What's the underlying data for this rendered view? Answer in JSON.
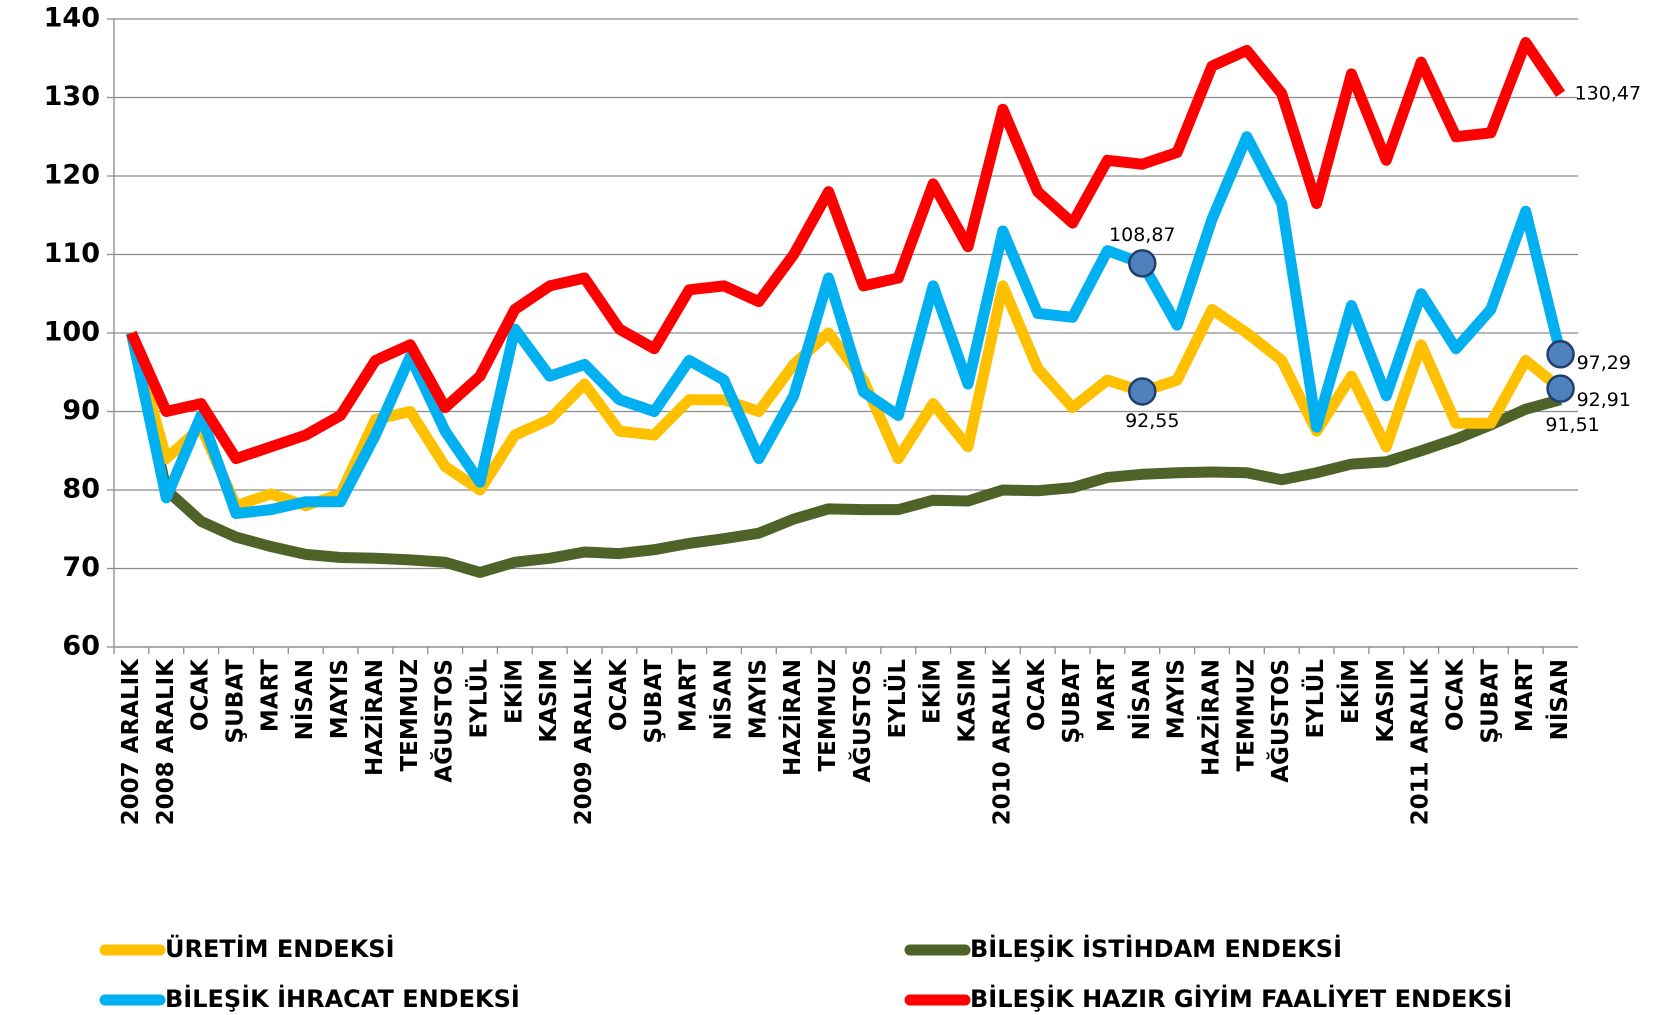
{
  "chart_data": {
    "type": "line",
    "categories": [
      "2007 ARALIK",
      "2008 ARALIK",
      "OCAK",
      "ŞUBAT",
      "MART",
      "NİSAN",
      "MAYIS",
      "HAZİRAN",
      "TEMMUZ",
      "AĞUSTOS",
      "EYLÜL",
      "EKİM",
      "KASIM",
      "2009 ARALIK",
      "OCAK",
      "ŞUBAT",
      "MART",
      "NİSAN",
      "MAYIS",
      "HAZİRAN",
      "TEMMUZ",
      "AĞUSTOS",
      "EYLÜL",
      "EKİM",
      "KASIM",
      "2010 ARALIK",
      "OCAK",
      "ŞUBAT",
      "MART",
      "NİSAN",
      "MAYIS",
      "HAZİRAN",
      "TEMMUZ",
      "AĞUSTOS",
      "EYLÜL",
      "EKİM",
      "KASIM",
      "2011 ARALIK",
      "OCAK",
      "ŞUBAT",
      "MART",
      "NİSAN"
    ],
    "ylim": [
      60,
      140
    ],
    "yticks": [
      60,
      70,
      80,
      90,
      100,
      110,
      120,
      130,
      140
    ],
    "grid": true,
    "series": [
      {
        "name": "ÜRETİM ENDEKSİ",
        "color": "#ffc000",
        "marker_color": "#4f81bd",
        "values": [
          100,
          84,
          88,
          78,
          79.5,
          78,
          79.5,
          89,
          90,
          83,
          80,
          87,
          89,
          93.5,
          87.5,
          87,
          91.5,
          91.5,
          90,
          96,
          100,
          94,
          84,
          91,
          85.5,
          106,
          95.5,
          90.5,
          94,
          92.55,
          94,
          103,
          100,
          96.5,
          87.5,
          94.5,
          85.5,
          98.5,
          88.5,
          88.5,
          96.5,
          92.91
        ],
        "value_labels": [
          null,
          null,
          null,
          null,
          null,
          null,
          null,
          null,
          null,
          null,
          null,
          null,
          null,
          null,
          null,
          null,
          null,
          null,
          null,
          null,
          null,
          null,
          null,
          null,
          null,
          null,
          null,
          null,
          null,
          "92,55",
          null,
          null,
          null,
          null,
          null,
          null,
          null,
          null,
          null,
          null,
          null,
          "92,91"
        ]
      },
      {
        "name": "BİLEŞİK İHRACAT ENDEKSİ",
        "color": "#00b0f0",
        "marker_color": "#4f81bd",
        "values": [
          100,
          79,
          89.5,
          77,
          77.5,
          78.5,
          78.5,
          87,
          97,
          87.5,
          81,
          100.5,
          94.5,
          96,
          91.5,
          90,
          96.5,
          94,
          84,
          92,
          107,
          92.5,
          89.5,
          106,
          93.5,
          113,
          102.5,
          102,
          110.5,
          108.87,
          101,
          114.5,
          125,
          116.5,
          88,
          103.5,
          92,
          105,
          98,
          103,
          115.5,
          97.29
        ],
        "value_labels": [
          null,
          null,
          null,
          null,
          null,
          null,
          null,
          null,
          null,
          null,
          null,
          null,
          null,
          null,
          null,
          null,
          null,
          null,
          null,
          null,
          null,
          null,
          null,
          null,
          null,
          null,
          null,
          null,
          null,
          "108,87",
          null,
          null,
          null,
          null,
          null,
          null,
          null,
          null,
          null,
          null,
          null,
          "97,29"
        ]
      },
      {
        "name": "BİLEŞİK İSTİHDAM ENDEKSİ",
        "color": "#4f6228",
        "values": [
          100,
          80,
          76,
          74,
          72.8,
          71.8,
          71.4,
          71.3,
          71.1,
          70.8,
          69.5,
          70.8,
          71.3,
          72.1,
          71.9,
          72.4,
          73.2,
          73.8,
          74.5,
          76.3,
          77.6,
          77.5,
          77.5,
          78.7,
          78.6,
          80,
          79.9,
          80.3,
          81.6,
          82,
          82.2,
          82.3,
          82.2,
          81.3,
          82.2,
          83.3,
          83.6,
          85,
          86.5,
          88.3,
          90.3,
          91.51
        ],
        "value_labels": [
          null,
          null,
          null,
          null,
          null,
          null,
          null,
          null,
          null,
          null,
          null,
          null,
          null,
          null,
          null,
          null,
          null,
          null,
          null,
          null,
          null,
          null,
          null,
          null,
          null,
          null,
          null,
          null,
          null,
          null,
          null,
          null,
          null,
          null,
          null,
          null,
          null,
          null,
          null,
          null,
          null,
          "91,51"
        ]
      },
      {
        "name": "BİLEŞİK HAZIR GİYİM FAALİYET ENDEKSİ",
        "color": "#ff0000",
        "values": [
          100,
          90,
          91,
          84,
          85.5,
          87,
          89.5,
          96.5,
          98.5,
          90.5,
          94.5,
          103,
          106,
          107,
          100.5,
          98,
          105.5,
          106,
          104,
          110,
          118,
          106,
          107,
          119,
          111,
          128.5,
          118,
          114,
          122,
          121.5,
          123,
          134,
          136,
          130.5,
          116.5,
          133,
          122,
          134.5,
          125,
          125.5,
          137,
          130.47
        ],
        "value_labels": [
          null,
          null,
          null,
          null,
          null,
          null,
          null,
          null,
          null,
          null,
          null,
          null,
          null,
          null,
          null,
          null,
          null,
          null,
          null,
          null,
          null,
          null,
          null,
          null,
          null,
          null,
          null,
          null,
          null,
          null,
          null,
          null,
          null,
          null,
          null,
          null,
          null,
          null,
          null,
          null,
          null,
          "130,47"
        ]
      }
    ]
  }
}
